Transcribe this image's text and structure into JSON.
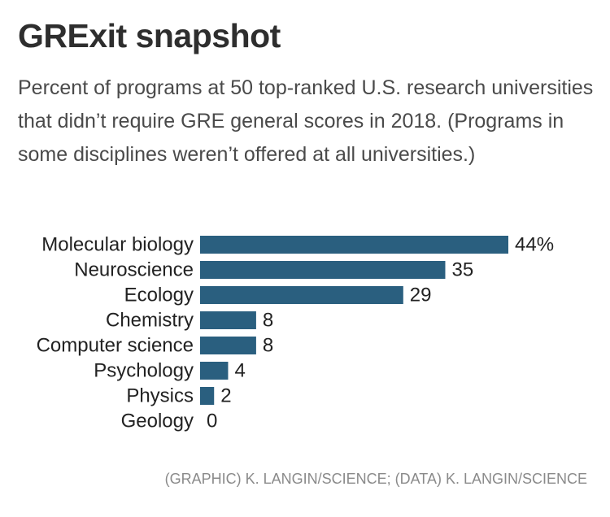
{
  "title": "GRExit snapshot",
  "subtitle": "Percent of programs at 50 top-ranked U.S. research universities that didn’t require GRE general scores in 2018. (Programs in some disciplines weren’t offered at all universities.)",
  "source": "(GRAPHIC) K. LANGIN/SCIENCE; (DATA) K. LANGIN/SCIENCE",
  "colors": {
    "bar": "#2a5f7f"
  },
  "chart_data": {
    "type": "bar",
    "orientation": "horizontal",
    "categories": [
      "Molecular biology",
      "Neuroscience",
      "Ecology",
      "Chemistry",
      "Computer science",
      "Psychology",
      "Physics",
      "Geology"
    ],
    "values": [
      44,
      35,
      29,
      8,
      8,
      4,
      2,
      0
    ],
    "value_labels": [
      "44%",
      "35",
      "29",
      "8",
      "8",
      "4",
      "2",
      "0"
    ],
    "xlim": [
      0,
      44
    ],
    "grid": false,
    "legend": "none"
  }
}
